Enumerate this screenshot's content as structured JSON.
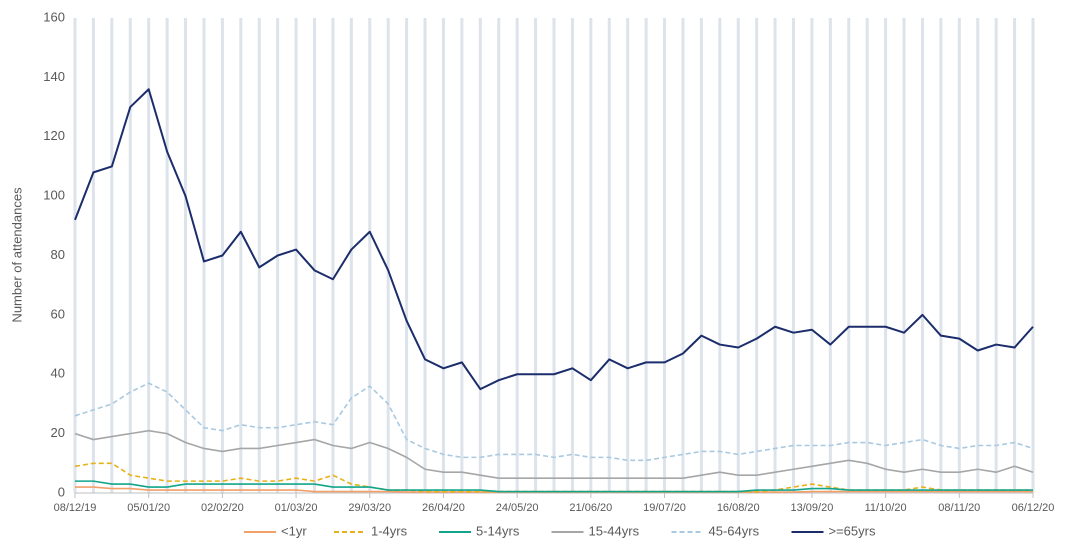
{
  "chart_data": {
    "type": "line",
    "y_label": "Number of attendances",
    "x": [
      "08/12/19",
      "15/12/19",
      "22/12/19",
      "29/12/19",
      "05/01/20",
      "12/01/20",
      "19/01/20",
      "26/01/20",
      "02/02/20",
      "09/02/20",
      "16/02/20",
      "23/02/20",
      "01/03/20",
      "08/03/20",
      "15/03/20",
      "22/03/20",
      "29/03/20",
      "05/04/20",
      "12/04/20",
      "19/04/20",
      "26/04/20",
      "03/05/20",
      "10/05/20",
      "17/05/20",
      "24/05/20",
      "31/05/20",
      "07/06/20",
      "14/06/20",
      "21/06/20",
      "28/06/20",
      "05/07/20",
      "12/07/20",
      "19/07/20",
      "26/07/20",
      "02/08/20",
      "09/08/20",
      "16/08/20",
      "23/08/20",
      "30/08/20",
      "06/09/20",
      "13/09/20",
      "20/09/20",
      "27/09/20",
      "04/10/20",
      "11/10/20",
      "18/10/20",
      "25/10/20",
      "01/11/20",
      "08/11/20",
      "15/11/20",
      "22/11/20",
      "29/11/20",
      "06/12/20"
    ],
    "xlim": [
      "08/12/19",
      "06/12/20"
    ],
    "xticks": [
      "08/12/19",
      "05/01/20",
      "02/02/20",
      "01/03/20",
      "29/03/20",
      "26/04/20",
      "24/05/20",
      "21/06/20",
      "19/07/20",
      "16/08/20",
      "13/09/20",
      "11/10/20",
      "08/11/20",
      "06/12/20"
    ],
    "ylim": [
      0,
      160
    ],
    "yticks": [
      0,
      20,
      40,
      60,
      80,
      100,
      120,
      140,
      160
    ],
    "legend": "bottom",
    "series": [
      {
        "name": "<1yr",
        "color": "#f2a06a",
        "dashed": false,
        "values": [
          2,
          2,
          1.5,
          1.5,
          1,
          1,
          1,
          1,
          1,
          1,
          1,
          1,
          1,
          0.5,
          0.5,
          0.5,
          0.5,
          0.5,
          0.3,
          0.3,
          0.3,
          0.3,
          0.3,
          0.3,
          0.3,
          0.3,
          0.3,
          0.3,
          0.3,
          0.3,
          0.3,
          0.3,
          0.3,
          0.3,
          0.3,
          0.3,
          0.3,
          0.3,
          0.3,
          0.3,
          0.5,
          0.5,
          0.5,
          0.5,
          0.5,
          0.5,
          0.5,
          0.5,
          0.5,
          0.5,
          0.5,
          0.5,
          0.5
        ]
      },
      {
        "name": "1-4yrs",
        "color": "#e8b11a",
        "dashed": true,
        "values": [
          9,
          10,
          10,
          6,
          5,
          4,
          4,
          4,
          4,
          5,
          4,
          4,
          5,
          4,
          6,
          3,
          2,
          1,
          1,
          0.5,
          0.5,
          0.5,
          0.5,
          0.5,
          0.5,
          0.5,
          0.5,
          0.5,
          0.5,
          0.5,
          0.5,
          0.5,
          0.5,
          0.5,
          0.5,
          0.5,
          0.5,
          0.5,
          1,
          2,
          3,
          2,
          1,
          1,
          1,
          1,
          2,
          1,
          1,
          1,
          1,
          1,
          1
        ]
      },
      {
        "name": "5-14yrs",
        "color": "#12a58c",
        "dashed": false,
        "values": [
          4,
          4,
          3,
          3,
          2,
          2,
          3,
          3,
          3,
          3,
          3,
          3,
          3,
          3,
          2,
          2,
          2,
          1,
          1,
          1,
          1,
          1,
          1,
          0.5,
          0.5,
          0.5,
          0.5,
          0.5,
          0.5,
          0.5,
          0.5,
          0.5,
          0.5,
          0.5,
          0.5,
          0.5,
          0.5,
          1,
          1,
          1,
          1.5,
          1.5,
          1,
          1,
          1,
          1,
          1,
          1,
          1,
          1,
          1,
          1,
          1
        ]
      },
      {
        "name": "15-44yrs",
        "color": "#a6a6a6",
        "dashed": false,
        "values": [
          20,
          18,
          19,
          20,
          21,
          20,
          17,
          15,
          14,
          15,
          15,
          16,
          17,
          18,
          16,
          15,
          17,
          15,
          12,
          8,
          7,
          7,
          6,
          5,
          5,
          5,
          5,
          5,
          5,
          5,
          5,
          5,
          5,
          5,
          6,
          7,
          6,
          6,
          7,
          8,
          9,
          10,
          11,
          10,
          8,
          7,
          8,
          7,
          7,
          8,
          7,
          9,
          7
        ]
      },
      {
        "name": "45-64yrs",
        "color": "#a9c9e0",
        "dashed": true,
        "values": [
          26,
          28,
          30,
          34,
          37,
          34,
          28,
          22,
          21,
          23,
          22,
          22,
          23,
          24,
          23,
          32,
          36,
          30,
          18,
          15,
          13,
          12,
          12,
          13,
          13,
          13,
          12,
          13,
          12,
          12,
          11,
          11,
          12,
          13,
          14,
          14,
          13,
          14,
          15,
          16,
          16,
          16,
          17,
          17,
          16,
          17,
          18,
          16,
          15,
          16,
          16,
          17,
          15
        ]
      },
      {
        "name": ">=65yrs",
        "color": "#1b2d6b",
        "dashed": false,
        "values": [
          92,
          108,
          110,
          130,
          136,
          115,
          100,
          78,
          80,
          88,
          76,
          80,
          82,
          75,
          72,
          82,
          88,
          75,
          58,
          45,
          42,
          44,
          35,
          38,
          40,
          40,
          40,
          42,
          38,
          45,
          42,
          44,
          44,
          47,
          53,
          50,
          49,
          52,
          56,
          54,
          55,
          50,
          56,
          56,
          56,
          54,
          60,
          53,
          52,
          48,
          50,
          49,
          56
        ]
      }
    ]
  }
}
